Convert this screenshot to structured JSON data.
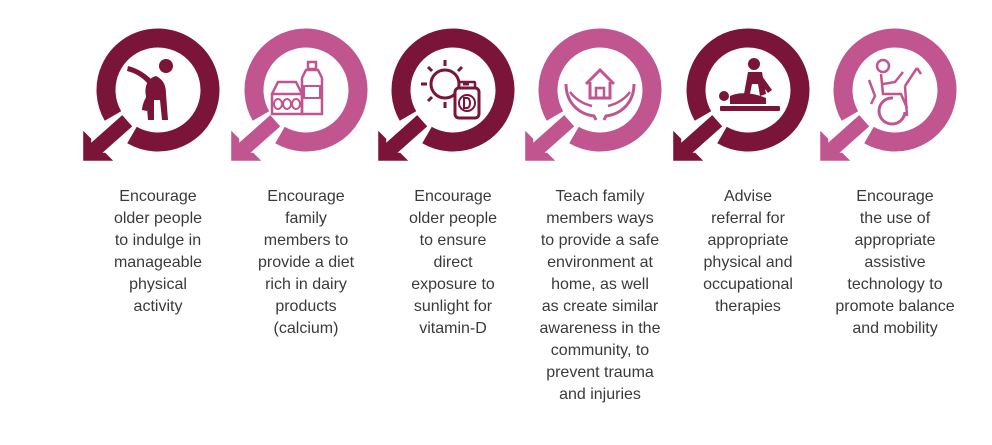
{
  "colors": {
    "dark": "#7b1439",
    "light": "#c0558f",
    "text": "#3a3a3a"
  },
  "steps": [
    {
      "icon": "stretching-person-icon",
      "color": "dark",
      "lines": [
        "Encourage",
        "older people",
        "to indulge in",
        "manageable",
        "physical",
        "activity"
      ]
    },
    {
      "icon": "dairy-products-icon",
      "color": "light",
      "lines": [
        "Encourage",
        "family",
        "members to",
        "provide a diet",
        "rich in dairy",
        "products",
        "(calcium)"
      ]
    },
    {
      "icon": "sun-vitamin-d-icon",
      "color": "dark",
      "lines": [
        "Encourage",
        "older people",
        "to ensure",
        "direct",
        "exposure to",
        "sunlight for",
        "vitamin-D"
      ]
    },
    {
      "icon": "hands-home-icon",
      "color": "light",
      "lines": [
        "Teach family",
        "members ways",
        "to provide a safe",
        "environment at",
        "home, as well",
        "as create similar",
        "awareness in the",
        "community, to",
        "prevent trauma",
        "and injuries"
      ]
    },
    {
      "icon": "physiotherapy-icon",
      "color": "dark",
      "lines": [
        "Advise",
        "referral for",
        "appropriate",
        "physical and",
        "occupational",
        "therapies"
      ]
    },
    {
      "icon": "wheelchair-icon",
      "color": "light",
      "lines": [
        "Encourage",
        "the use of",
        "appropriate",
        "assistive",
        "technology to",
        "promote balance",
        "and mobility"
      ]
    }
  ]
}
